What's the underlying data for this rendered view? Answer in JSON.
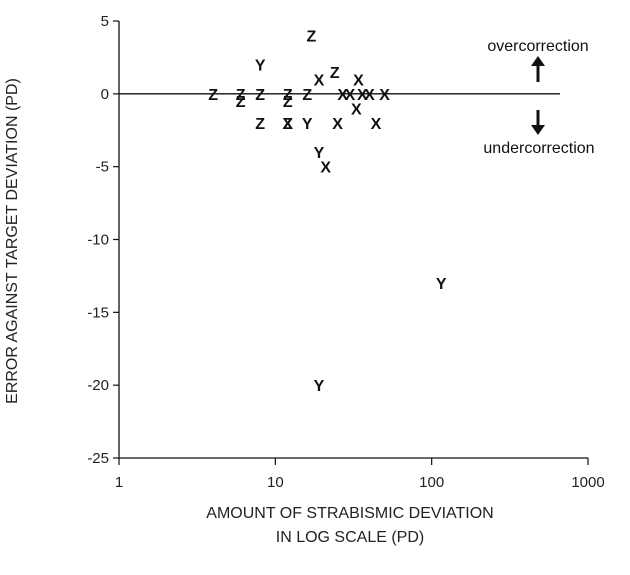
{
  "chart_data": {
    "type": "scatter",
    "xlabel_lines": [
      "AMOUNT OF STRABISMIC DEVIATION",
      "IN LOG SCALE (PD)"
    ],
    "ylabel": "ERROR AGAINST TARGET DEVIATION (PD)",
    "x_scale": "log",
    "xlim": [
      1,
      1000
    ],
    "ylim": [
      -25,
      5
    ],
    "x_ticks": [
      1,
      10,
      100,
      1000
    ],
    "x_tick_labels": [
      "1",
      "10",
      "100",
      "1000"
    ],
    "y_ticks": [
      5,
      0,
      -5,
      -10,
      -15,
      -20,
      -25
    ],
    "y_tick_labels": [
      "5",
      "0",
      "-5",
      "-10",
      "-15",
      "-20",
      "-25"
    ],
    "reference_line_y": 0,
    "annotations": {
      "over": "overcorrection",
      "under": "undercorrection"
    },
    "groups": [
      {
        "marker": "Z",
        "points": [
          [
            4,
            0
          ],
          [
            6,
            0
          ],
          [
            6,
            -0.5
          ],
          [
            8,
            0
          ],
          [
            12,
            0
          ],
          [
            12,
            -0.5
          ],
          [
            12,
            -2
          ],
          [
            8,
            -2
          ],
          [
            16,
            0
          ],
          [
            17,
            4
          ],
          [
            24,
            1.5
          ]
        ]
      },
      {
        "marker": "Y",
        "points": [
          [
            8,
            2
          ],
          [
            16,
            -2
          ],
          [
            19,
            -4
          ],
          [
            115,
            -13
          ],
          [
            19,
            -20
          ]
        ]
      },
      {
        "marker": "X",
        "points": [
          [
            12,
            -2
          ],
          [
            19,
            1
          ],
          [
            21,
            -5
          ],
          [
            25,
            -2
          ],
          [
            27,
            0
          ],
          [
            30,
            0
          ],
          [
            33,
            -1
          ],
          [
            34,
            1
          ],
          [
            36,
            0
          ],
          [
            40,
            0
          ],
          [
            44,
            -2
          ],
          [
            50,
            0
          ]
        ]
      }
    ]
  }
}
